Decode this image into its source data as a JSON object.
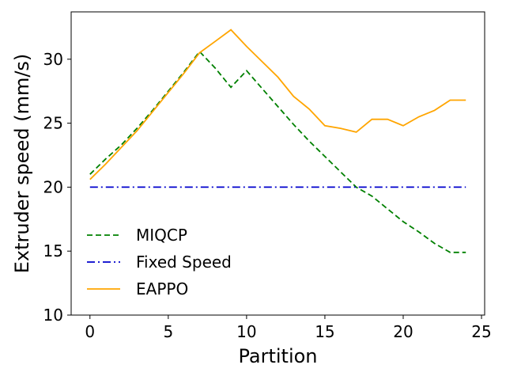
{
  "chart_data": {
    "type": "line",
    "title": "",
    "xlabel": "Partition",
    "ylabel": "Extruder speed (mm/s)",
    "xlim": [
      -1.2,
      25.2
    ],
    "ylim": [
      10,
      33.7
    ],
    "xticks": [
      0,
      5,
      10,
      15,
      20,
      25
    ],
    "yticks": [
      10,
      15,
      20,
      25,
      30
    ],
    "grid": false,
    "legend_position": "lower-left",
    "x": [
      0,
      1,
      2,
      3,
      4,
      5,
      6,
      7,
      8,
      9,
      10,
      11,
      12,
      13,
      14,
      15,
      16,
      17,
      18,
      19,
      20,
      21,
      22,
      23,
      24
    ],
    "series": [
      {
        "name": "MIQCP",
        "color": "#008000",
        "style": "dashed",
        "values": [
          21.0,
          22.2,
          23.3,
          24.6,
          26.0,
          27.5,
          29.0,
          30.6,
          29.3,
          27.8,
          29.1,
          27.7,
          26.3,
          24.9,
          23.6,
          22.4,
          21.2,
          20.0,
          19.3,
          18.3,
          17.3,
          16.5,
          15.6,
          14.9,
          14.9
        ]
      },
      {
        "name": "Fixed Speed",
        "color": "#0000cc",
        "style": "dashdot",
        "values": [
          20,
          20,
          20,
          20,
          20,
          20,
          20,
          20,
          20,
          20,
          20,
          20,
          20,
          20,
          20,
          20,
          20,
          20,
          20,
          20,
          20,
          20,
          20,
          20,
          20
        ]
      },
      {
        "name": "EAPPO",
        "color": "#ffa500",
        "style": "solid",
        "values": [
          20.6,
          21.8,
          23.1,
          24.4,
          25.9,
          27.4,
          28.9,
          30.5,
          31.4,
          32.3,
          31.0,
          29.8,
          28.6,
          27.1,
          26.1,
          24.8,
          24.6,
          24.3,
          25.3,
          25.3,
          24.8,
          25.5,
          26.0,
          26.8,
          26.8
        ]
      }
    ]
  }
}
